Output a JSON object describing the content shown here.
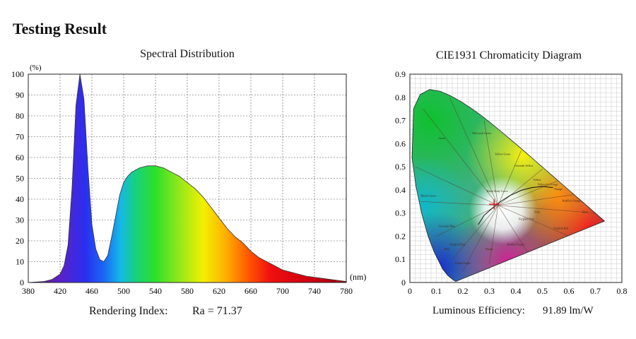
{
  "page": {
    "title": "Testing Result"
  },
  "spectral": {
    "title": "Spectral Distribution",
    "footer_label": "Rendering Index:",
    "footer_value": "Ra = 71.37"
  },
  "cie": {
    "title": "CIE1931 Chromaticity Diagram",
    "footer_label": "Luminous Efficiency:",
    "footer_value": "91.89 lm/W"
  },
  "chart_data": [
    {
      "type": "area",
      "title": "Spectral Distribution",
      "xlabel": "(nm)",
      "ylabel": "(%)",
      "xlim": [
        380,
        780
      ],
      "ylim": [
        0,
        100
      ],
      "grid": true,
      "x_ticks": [
        "380",
        "420",
        "460",
        "500",
        "540",
        "580",
        "620",
        "660",
        "700",
        "740",
        "780"
      ],
      "y_ticks": [
        "0",
        "10",
        "20",
        "30",
        "40",
        "50",
        "60",
        "70",
        "80",
        "90",
        "100"
      ],
      "series": [
        {
          "x": [
            380,
            400,
            410,
            420,
            425,
            430,
            435,
            440,
            445,
            450,
            455,
            460,
            465,
            470,
            475,
            480,
            485,
            490,
            495,
            500,
            505,
            510,
            520,
            530,
            540,
            550,
            560,
            570,
            580,
            590,
            600,
            610,
            620,
            630,
            640,
            650,
            660,
            670,
            680,
            690,
            700,
            710,
            720,
            730,
            740,
            750,
            760,
            770,
            780
          ],
          "values": [
            0,
            0.5,
            1.5,
            4,
            8,
            18,
            45,
            85,
            100,
            88,
            55,
            28,
            16,
            11,
            10,
            13,
            22,
            32,
            42,
            48,
            51,
            53,
            55,
            56,
            56,
            55,
            53,
            51,
            48,
            45,
            41,
            36,
            31,
            26,
            22,
            19,
            15,
            12,
            10,
            8,
            6,
            5,
            4,
            3,
            2.5,
            2,
            1.5,
            1,
            0.5
          ]
        }
      ],
      "annotation": "Ra = 71.37"
    },
    {
      "type": "scatter",
      "title": "CIE1931 Chromaticity Diagram",
      "xlim": [
        0,
        0.8
      ],
      "ylim": [
        0,
        0.9
      ],
      "grid": true,
      "x_ticks": [
        "0",
        "0.1",
        "0.2",
        "0.3",
        "0.4",
        "0.5",
        "0.6",
        "0.7",
        "0.8"
      ],
      "y_ticks": [
        "0",
        "0.1",
        "0.2",
        "0.3",
        "0.4",
        "0.5",
        "0.6",
        "0.7",
        "0.8",
        "0.9"
      ],
      "locus": {
        "x": [
          0.1741,
          0.1738,
          0.1733,
          0.1726,
          0.1714,
          0.1689,
          0.1644,
          0.1566,
          0.144,
          0.1241,
          0.0913,
          0.0687,
          0.0454,
          0.0235,
          0.0082,
          0.0139,
          0.0389,
          0.0743,
          0.1142,
          0.1547,
          0.1929,
          0.2296,
          0.2658,
          0.3016,
          0.3373,
          0.3731,
          0.4087,
          0.4441,
          0.4788,
          0.5125,
          0.5448,
          0.5752,
          0.6029,
          0.627,
          0.6482,
          0.6658,
          0.6801,
          0.6915,
          0.7006,
          0.7079,
          0.714,
          0.719,
          0.723,
          0.726,
          0.7347
        ],
        "y": [
          0.005,
          0.0049,
          0.0048,
          0.0048,
          0.0051,
          0.0069,
          0.0109,
          0.0177,
          0.0297,
          0.0578,
          0.1327,
          0.2007,
          0.295,
          0.4127,
          0.5384,
          0.7502,
          0.812,
          0.8338,
          0.8262,
          0.8059,
          0.7816,
          0.7543,
          0.7243,
          0.6923,
          0.6589,
          0.6245,
          0.5896,
          0.5547,
          0.5202,
          0.4866,
          0.4544,
          0.4242,
          0.3965,
          0.3725,
          0.3514,
          0.334,
          0.3197,
          0.3083,
          0.2993,
          0.292,
          0.2859,
          0.2809,
          0.277,
          0.274,
          0.2653
        ]
      },
      "series": [
        {
          "name": "",
          "x": [
            0.318
          ],
          "y": [
            0.338
          ]
        }
      ],
      "region_labels": [
        "Green",
        "Yellowish Green",
        "Yellow Green",
        "Greenish Yellow",
        "Yellow",
        "Yellowish Orange",
        "Orange",
        "Reddish Orange",
        "Red",
        "Purplish Red",
        "Pink",
        "Purplish Pink",
        "Reddish Purple",
        "Purple",
        "Bluish Purple",
        "Purplish Blue",
        "Blue",
        "Greenish Blue",
        "Bluish Green",
        "Black Body Curve"
      ],
      "annotation": "91.89 lm/W"
    }
  ]
}
